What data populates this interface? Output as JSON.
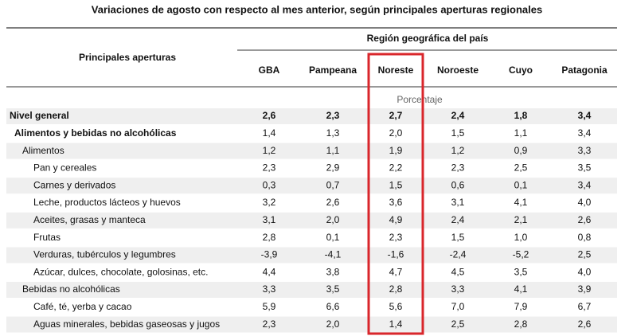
{
  "title": "Variaciones de agosto con respecto al mes anterior, según principales aperturas regionales",
  "header": {
    "row_label": "Principales aperturas",
    "group": "Región geográfica del país",
    "columns": [
      "GBA",
      "Pampeana",
      "Noreste",
      "Noroeste",
      "Cuyo",
      "Patagonia"
    ],
    "unit": "Porcentaje"
  },
  "table": {
    "rows": [
      {
        "label": "Nivel general",
        "values": [
          "2,6",
          "2,3",
          "2,7",
          "2,4",
          "1,8",
          "3,4"
        ],
        "children": [
          {
            "label": "Alimentos y bebidas no alcohólicas",
            "values": [
              "1,4",
              "1,3",
              "2,0",
              "1,5",
              "1,1",
              "3,4"
            ],
            "children": [
              {
                "label": "Alimentos",
                "values": [
                  "1,2",
                  "1,1",
                  "1,9",
                  "1,2",
                  "0,9",
                  "3,3"
                ],
                "children": [
                  {
                    "label": "Pan y cereales",
                    "values": [
                      "2,3",
                      "2,9",
                      "2,2",
                      "2,3",
                      "2,5",
                      "3,5"
                    ]
                  },
                  {
                    "label": "Carnes y derivados",
                    "values": [
                      "0,3",
                      "0,7",
                      "1,5",
                      "0,6",
                      "0,1",
                      "3,4"
                    ]
                  },
                  {
                    "label": "Leche, productos lácteos y huevos",
                    "values": [
                      "3,2",
                      "2,6",
                      "3,6",
                      "3,1",
                      "4,1",
                      "4,0"
                    ]
                  },
                  {
                    "label": "Aceites, grasas y manteca",
                    "values": [
                      "3,1",
                      "2,0",
                      "4,9",
                      "2,4",
                      "2,1",
                      "2,6"
                    ]
                  },
                  {
                    "label": "Frutas",
                    "values": [
                      "2,8",
                      "0,1",
                      "2,3",
                      "1,5",
                      "1,0",
                      "0,8"
                    ]
                  },
                  {
                    "label": "Verduras, tubérculos y legumbres",
                    "values": [
                      "-3,9",
                      "-4,1",
                      "-1,6",
                      "-2,4",
                      "-5,2",
                      "2,5"
                    ]
                  },
                  {
                    "label": "Azúcar, dulces, chocolate, golosinas, etc.",
                    "values": [
                      "4,4",
                      "3,8",
                      "4,7",
                      "4,5",
                      "3,5",
                      "4,0"
                    ]
                  }
                ]
              },
              {
                "label": "Bebidas no alcohólicas",
                "values": [
                  "3,3",
                  "3,5",
                  "2,8",
                  "3,3",
                  "4,1",
                  "3,9"
                ],
                "children": [
                  {
                    "label": "Café, té, yerba y cacao",
                    "values": [
                      "5,9",
                      "6,6",
                      "5,6",
                      "7,0",
                      "7,9",
                      "6,7"
                    ]
                  },
                  {
                    "label": "Aguas minerales, bebidas gaseosas y jugos",
                    "values": [
                      "2,3",
                      "2,0",
                      "1,4",
                      "2,5",
                      "2,8",
                      "2,6"
                    ]
                  }
                ]
              }
            ]
          }
        ]
      }
    ]
  }
}
